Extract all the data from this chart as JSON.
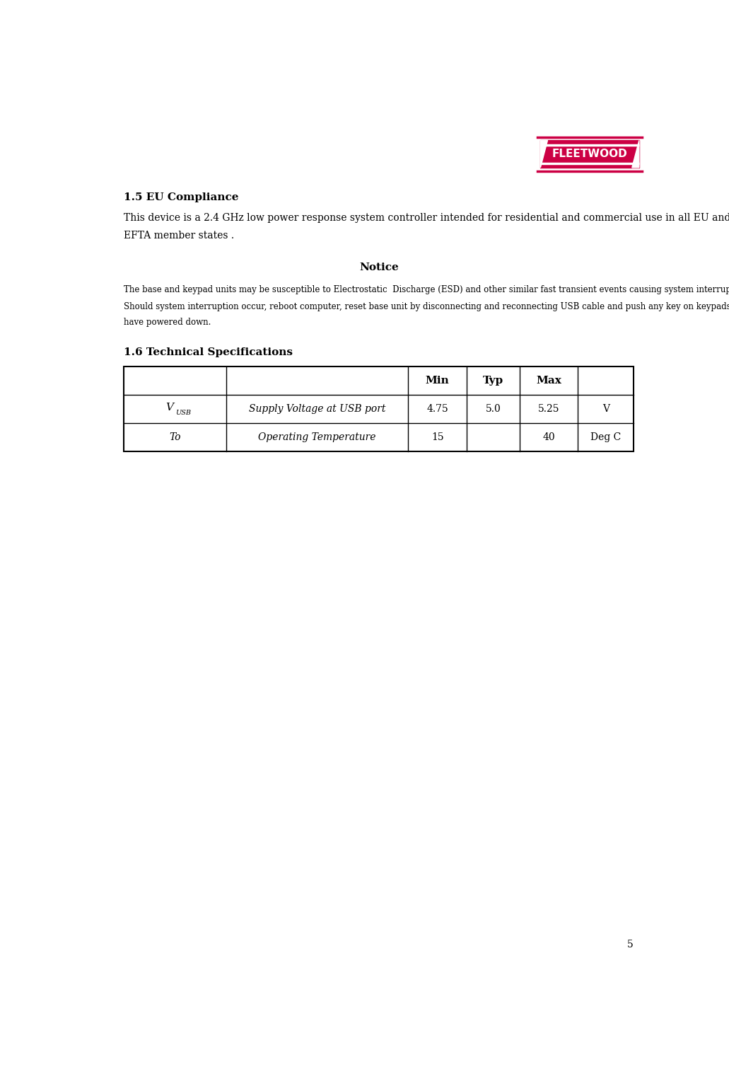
{
  "page_number": "5",
  "logo_text": "FLEETWOOD",
  "logo_color": "#cc0044",
  "section_15_title": "1.5 EU Compliance",
  "section_15_body_line1": "This device is a 2.4 GHz low power response system controller intended for residential and commercial use in all EU and",
  "section_15_body_line2": "EFTA member states .",
  "notice_title": "Notice",
  "notice_body_line1": "The base and keypad units may be susceptible to Electrostatic  Discharge (ESD) and other similar fast transient events causing system interruption.",
  "notice_body_line2": "Should system interruption occur, reboot computer, reset base unit by disconnecting and reconnecting USB cable and push any key on keypads which",
  "notice_body_line3": "have powered down.",
  "section_16_title": "1.6 Technical Specifications",
  "table_headers": [
    "",
    "",
    "Min",
    "Typ",
    "Max",
    ""
  ],
  "table_row1_col1": "Supply Voltage at USB port",
  "table_row1_col2": "4.75",
  "table_row1_col3": "5.0",
  "table_row1_col4": "5.25",
  "table_row1_col5": "V",
  "table_row2_col0": "To",
  "table_row2_col1": "Operating Temperature",
  "table_row2_col2": "15",
  "table_row2_col3": "",
  "table_row2_col4": "40",
  "table_row2_col5": "Deg C",
  "bg_color": "#ffffff",
  "text_color": "#000000",
  "body_fontsize": 10,
  "title_fontsize": 11,
  "notice_fontsize": 8.5,
  "table_fontsize": 10
}
